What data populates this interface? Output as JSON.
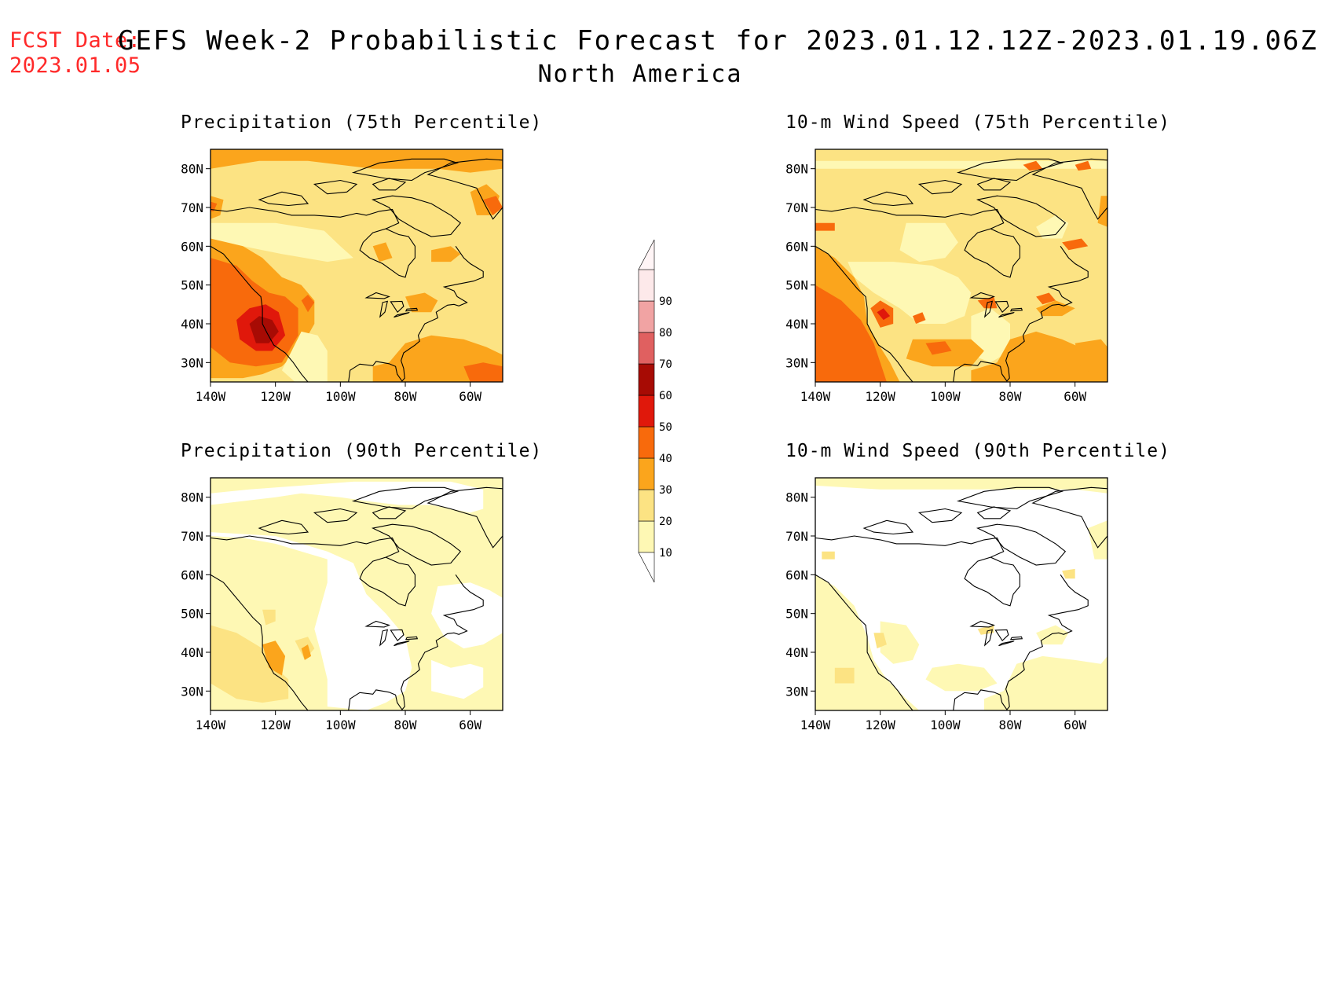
{
  "fcst_date": {
    "label": "FCST Date:",
    "value": "2023.01.05"
  },
  "title": "GEFS Week-2 Probabilistic Forecast for 2023.01.12.12Z-2023.01.19.06Z",
  "subtitle": "North America",
  "colors": {
    "c10": "#fef8b4",
    "c20": "#fce383",
    "c30": "#fba51c",
    "c40": "#f86a0c",
    "c50": "#e0180b",
    "c60": "#a70b04",
    "c70": "#e06060",
    "c80": "#f1a3a3",
    "c90": "#fde9ea"
  },
  "colorbar": {
    "levels": [
      "10",
      "20",
      "30",
      "40",
      "50",
      "60",
      "70",
      "80",
      "90"
    ]
  },
  "axes": {
    "lon_ticks": [
      "140W",
      "120W",
      "100W",
      "80W",
      "60W"
    ],
    "lat_ticks": [
      "30N",
      "40N",
      "50N",
      "60N",
      "70N",
      "80N"
    ]
  },
  "panels": [
    {
      "title": "Precipitation (75th Percentile)",
      "background_level": "20"
    },
    {
      "title": "10-m Wind Speed (75th Percentile)",
      "background_level": "20"
    },
    {
      "title": "Precipitation (90th Percentile)",
      "background_level": "10"
    },
    {
      "title": "10-m Wind Speed (90th Percentile)",
      "background_level": "none"
    }
  ]
}
